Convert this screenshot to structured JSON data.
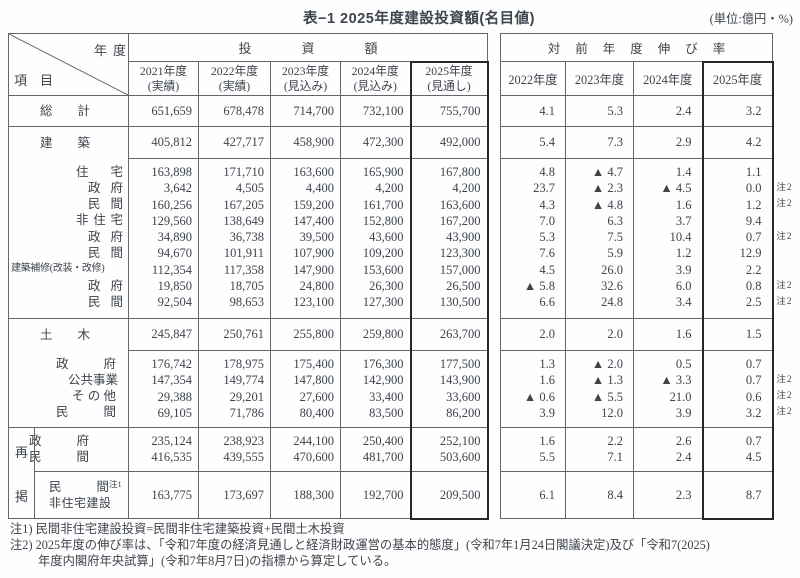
{
  "title": "表−1 2025年度建設投資額(名目値)",
  "unit_label": "(単位:億円・%)",
  "corner": {
    "top_label": "年度",
    "bottom_label": "項目"
  },
  "saikei_label": "再掲",
  "headers": {
    "investment_group": "投資額",
    "growth_group": "対前年度伸び率",
    "investment_years": [
      [
        "2021年度",
        "(実績)"
      ],
      [
        "2022年度",
        "(実績)"
      ],
      [
        "2023年度",
        "(見込み)"
      ],
      [
        "2024年度",
        "(見込み)"
      ],
      [
        "2025年度",
        "(見通し)"
      ]
    ],
    "growth_years": [
      "2022年度",
      "2023年度",
      "2024年度",
      "2025年度"
    ]
  },
  "blocks": [
    {
      "sep": "full",
      "rows": [
        {
          "label": "総計",
          "lc": "main",
          "inv": [
            "651,659",
            "678,478",
            "714,700",
            "732,100",
            "755,700"
          ],
          "gr": [
            "4.1",
            "5.3",
            "2.4",
            "3.2"
          ],
          "note": ""
        }
      ]
    },
    {
      "sep": "full",
      "rows": [
        {
          "label": "建築",
          "lc": "main",
          "inv": [
            "405,812",
            "427,717",
            "458,900",
            "472,300",
            "492,000"
          ],
          "gr": [
            "5.4",
            "7.3",
            "2.9",
            "4.2"
          ],
          "note": ""
        }
      ]
    },
    {
      "sep": "data",
      "rows": [
        {
          "label": "住宅",
          "lc": "s1",
          "inv": [
            "163,898",
            "171,710",
            "163,600",
            "165,900",
            "167,800"
          ],
          "gr": [
            "4.8",
            "▲ 4.7",
            "1.4",
            "1.1"
          ],
          "note": ""
        },
        {
          "label": "政府",
          "lc": "s2",
          "inv": [
            "3,642",
            "4,505",
            "4,400",
            "4,200",
            "4,200"
          ],
          "gr": [
            "23.7",
            "▲ 2.3",
            "▲ 4.5",
            "0.0"
          ],
          "note": "注2"
        },
        {
          "label": "民間",
          "lc": "s2",
          "inv": [
            "160,256",
            "167,205",
            "159,200",
            "161,700",
            "163,600"
          ],
          "gr": [
            "4.3",
            "▲ 4.8",
            "1.6",
            "1.2"
          ],
          "note": "注2"
        },
        {
          "label": "非住宅",
          "lc": "s1",
          "inv": [
            "129,560",
            "138,649",
            "147,400",
            "152,800",
            "167,200"
          ],
          "gr": [
            "7.0",
            "6.3",
            "3.7",
            "9.4"
          ],
          "note": ""
        },
        {
          "label": "政府",
          "lc": "s2",
          "inv": [
            "34,890",
            "36,738",
            "39,500",
            "43,600",
            "43,900"
          ],
          "gr": [
            "5.3",
            "7.5",
            "10.4",
            "0.7"
          ],
          "note": "注2"
        },
        {
          "label": "民間",
          "lc": "s2",
          "inv": [
            "94,670",
            "101,911",
            "107,900",
            "109,200",
            "123,300"
          ],
          "gr": [
            "7.6",
            "5.9",
            "1.2",
            "12.9"
          ],
          "note": ""
        },
        {
          "label": "建築補修(改装・改修)",
          "lc": "wide",
          "inv": [
            "112,354",
            "117,358",
            "147,900",
            "153,600",
            "157,000"
          ],
          "gr": [
            "4.5",
            "26.0",
            "3.9",
            "2.2"
          ],
          "note": ""
        },
        {
          "label": "政府",
          "lc": "s2",
          "inv": [
            "19,850",
            "18,705",
            "24,800",
            "26,300",
            "26,500"
          ],
          "gr": [
            "▲ 5.8",
            "32.6",
            "6.0",
            "0.8"
          ],
          "note": "注2"
        },
        {
          "label": "民間",
          "lc": "s2",
          "inv": [
            "92,504",
            "98,653",
            "123,100",
            "127,300",
            "130,500"
          ],
          "gr": [
            "6.6",
            "24.8",
            "3.4",
            "2.5"
          ],
          "note": "注2"
        }
      ]
    },
    {
      "sep": "full",
      "rows": [
        {
          "label": "土木",
          "lc": "main",
          "inv": [
            "245,847",
            "250,761",
            "255,800",
            "259,800",
            "263,700"
          ],
          "gr": [
            "2.0",
            "2.0",
            "1.6",
            "1.5"
          ],
          "note": ""
        }
      ]
    },
    {
      "sep": "data",
      "rows": [
        {
          "label": "政府",
          "lc": "t1",
          "inv": [
            "176,742",
            "178,975",
            "175,400",
            "176,300",
            "177,500"
          ],
          "gr": [
            "1.3",
            "▲ 2.0",
            "0.5",
            "0.7"
          ],
          "note": ""
        },
        {
          "label": "公共事業",
          "lc": "t2",
          "inv": [
            "147,354",
            "149,774",
            "147,800",
            "142,900",
            "143,900"
          ],
          "gr": [
            "1.6",
            "▲ 1.3",
            "▲ 3.3",
            "0.7"
          ],
          "note": "注2"
        },
        {
          "label": "その他",
          "lc": "t3",
          "inv": [
            "29,388",
            "29,201",
            "27,600",
            "33,400",
            "33,600"
          ],
          "gr": [
            "▲ 0.6",
            "▲ 5.5",
            "21.0",
            "0.6"
          ],
          "note": "注2"
        },
        {
          "label": "民間",
          "lc": "t1",
          "inv": [
            "69,105",
            "71,786",
            "80,400",
            "83,500",
            "86,200"
          ],
          "gr": [
            "3.9",
            "12.0",
            "3.9",
            "3.2"
          ],
          "note": "注2"
        }
      ]
    },
    {
      "sep": "full",
      "saikei": "start",
      "rows": [
        {
          "label": "政府",
          "lc": "r1",
          "inv": [
            "235,124",
            "238,923",
            "244,100",
            "250,400",
            "252,100"
          ],
          "gr": [
            "1.6",
            "2.2",
            "2.6",
            "0.7"
          ],
          "note": ""
        },
        {
          "label": "民間",
          "lc": "r1",
          "inv": [
            "416,535",
            "439,555",
            "470,600",
            "481,700",
            "503,600"
          ],
          "gr": [
            "5.5",
            "7.1",
            "2.4",
            "4.5"
          ],
          "note": ""
        }
      ]
    },
    {
      "sep": "saikei",
      "rows": [
        {
          "label": "民間",
          "label2": "非住宅建設",
          "sup": "注1",
          "lc": "r2",
          "inv": [
            "163,775",
            "173,697",
            "188,300",
            "192,700",
            "209,500"
          ],
          "gr": [
            "6.1",
            "8.4",
            "2.3",
            "8.7"
          ],
          "note": ""
        }
      ]
    }
  ],
  "notes": [
    "注1) 民間非住宅建設投資=民間非住宅建築投資+民間土木投資",
    "注2) 2025年度の伸び率は、「令和7年度の経済見通しと経済財政運営の基本的態度」(令和7年1月24日閣議決定)及び「令和7(2025)",
    "年度内閣府年央試算」(令和7年8月7日)の指標から算定している。"
  ],
  "colors": {
    "text": "#3d444d",
    "border_thin": "#60666e",
    "border_thick": "#23282e"
  }
}
